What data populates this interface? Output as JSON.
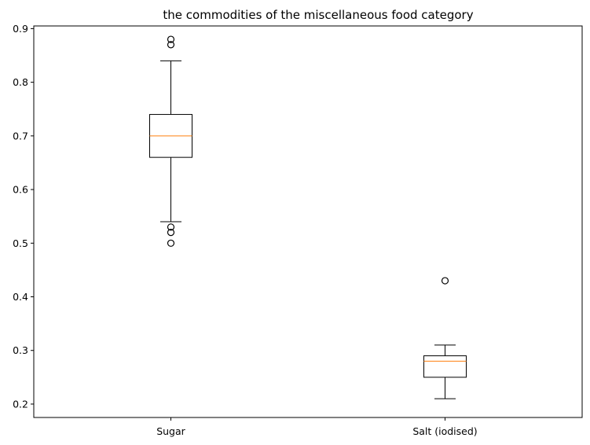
{
  "chart_data": {
    "type": "box",
    "title": "the  commodities of the miscellaneous food category",
    "xlabel": "",
    "ylabel": "",
    "categories": [
      "Sugar",
      "Salt (iodised)"
    ],
    "boxes": [
      {
        "name": "Sugar",
        "whisker_low": 0.54,
        "q1": 0.66,
        "median": 0.7,
        "q3": 0.74,
        "whisker_high": 0.84,
        "outliers": [
          0.5,
          0.52,
          0.53,
          0.87,
          0.88
        ]
      },
      {
        "name": "Salt (iodised)",
        "whisker_low": 0.21,
        "q1": 0.25,
        "median": 0.28,
        "q3": 0.29,
        "whisker_high": 0.31,
        "outliers": [
          0.43
        ]
      }
    ],
    "ylim": [
      0.175,
      0.905
    ],
    "yticks": [
      "0.2",
      "0.3",
      "0.4",
      "0.5",
      "0.6",
      "0.7",
      "0.8",
      "0.9"
    ],
    "grid": false,
    "colors": {
      "box": "#000000",
      "median": "#ff7f0e",
      "outlier": "#000000"
    }
  }
}
